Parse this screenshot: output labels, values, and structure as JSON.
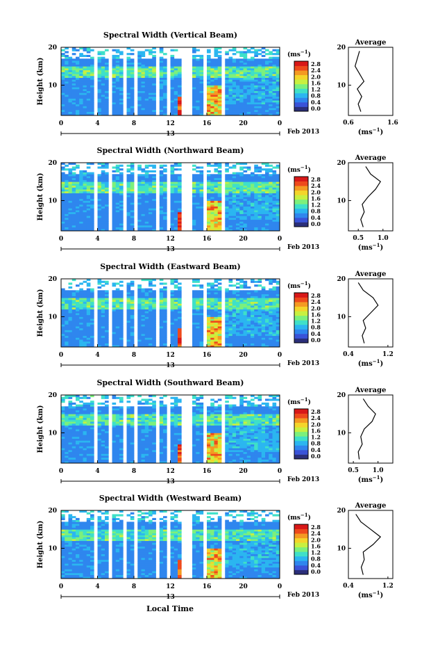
{
  "figure": {
    "x_axis_label": "Local Time",
    "colorbar_unit": "(ms",
    "colorbar_unit_sup": "−1",
    "avg_title": "Average",
    "avg_unit": "(ms",
    "avg_unit_sup": "−1",
    "y_axis_label": "Height (km)",
    "date_label": "Feb 2013",
    "day_label": "13"
  },
  "colorbar": {
    "ticks": [
      "2.8",
      "2.4",
      "2.0",
      "1.6",
      "1.2",
      "0.8",
      "0.4",
      "0.0"
    ],
    "colors": [
      "#2b2f7a",
      "#3a53d8",
      "#2f86ee",
      "#2bb6f0",
      "#3fe0c8",
      "#7cf07c",
      "#c8f040",
      "#f4d52a",
      "#f49a22",
      "#ee4a1c",
      "#d81818"
    ]
  },
  "chart_data": [
    {
      "type": "heatmap",
      "title": "Spectral Width (Vertical Beam)",
      "xlabel": "",
      "ylabel": "Height (km)",
      "xlim": [
        0,
        24
      ],
      "ylim": [
        2,
        20
      ],
      "x_ticks": [
        "0",
        "4",
        "8",
        "12",
        "16",
        "20",
        "0"
      ],
      "y_ticks": [
        "20",
        "10"
      ],
      "colorbar_range": [
        0.0,
        2.8
      ],
      "avg_profile": {
        "xlim": [
          0.6,
          1.6
        ],
        "x_ticks": [
          "0.6",
          "1.6"
        ],
        "profile": [
          [
            0.88,
            3
          ],
          [
            0.82,
            5
          ],
          [
            0.9,
            7
          ],
          [
            0.8,
            9
          ],
          [
            0.95,
            11
          ],
          [
            0.85,
            13
          ],
          [
            0.75,
            15
          ],
          [
            0.8,
            17
          ],
          [
            0.85,
            19
          ]
        ]
      }
    },
    {
      "type": "heatmap",
      "title": "Spectral Width (Northward Beam)",
      "xlabel": "",
      "ylabel": "Height (km)",
      "xlim": [
        0,
        24
      ],
      "ylim": [
        2,
        20
      ],
      "x_ticks": [
        "0",
        "4",
        "8",
        "12",
        "16",
        "20",
        "0"
      ],
      "y_ticks": [
        "20",
        "10"
      ],
      "colorbar_range": [
        0.0,
        2.8
      ],
      "avg_profile": {
        "xlim": [
          0.3,
          1.2
        ],
        "x_ticks": [
          "0.5",
          "1.0"
        ],
        "profile": [
          [
            0.6,
            3
          ],
          [
            0.55,
            5
          ],
          [
            0.62,
            7
          ],
          [
            0.58,
            9
          ],
          [
            0.7,
            11
          ],
          [
            0.85,
            13
          ],
          [
            0.95,
            15
          ],
          [
            0.75,
            17
          ],
          [
            0.65,
            19
          ]
        ]
      }
    },
    {
      "type": "heatmap",
      "title": "Spectral Width (Eastward Beam)",
      "xlabel": "",
      "ylabel": "Height (km)",
      "xlim": [
        0,
        24
      ],
      "ylim": [
        2,
        20
      ],
      "x_ticks": [
        "0",
        "4",
        "8",
        "12",
        "16",
        "20",
        "0"
      ],
      "y_ticks": [
        "20",
        "10"
      ],
      "colorbar_range": [
        0.0,
        2.8
      ],
      "avg_profile": {
        "xlim": [
          0.4,
          1.3
        ],
        "x_ticks": [
          "0.4",
          "1.2"
        ],
        "profile": [
          [
            0.72,
            3
          ],
          [
            0.68,
            5
          ],
          [
            0.75,
            7
          ],
          [
            0.7,
            9
          ],
          [
            0.85,
            11
          ],
          [
            1.0,
            13
          ],
          [
            0.9,
            15
          ],
          [
            0.7,
            17
          ],
          [
            0.6,
            19
          ]
        ]
      }
    },
    {
      "type": "heatmap",
      "title": "Spectral Width (Southward Beam)",
      "xlabel": "",
      "ylabel": "Height (km)",
      "xlim": [
        0,
        24
      ],
      "ylim": [
        2,
        20
      ],
      "x_ticks": [
        "0",
        "4",
        "8",
        "12",
        "16",
        "20",
        "0"
      ],
      "y_ticks": [
        "20",
        "10"
      ],
      "colorbar_range": [
        0.0,
        2.8
      ],
      "avg_profile": {
        "xlim": [
          0.4,
          1.3
        ],
        "x_ticks": [
          "0.5",
          "1.0"
        ],
        "profile": [
          [
            0.62,
            3
          ],
          [
            0.6,
            5
          ],
          [
            0.68,
            7
          ],
          [
            0.65,
            9
          ],
          [
            0.72,
            11
          ],
          [
            0.88,
            13
          ],
          [
            0.95,
            15
          ],
          [
            0.8,
            17
          ],
          [
            0.7,
            19
          ]
        ]
      }
    },
    {
      "type": "heatmap",
      "title": "Spectral Width (Westward Beam)",
      "xlabel": "",
      "ylabel": "Height (km)",
      "xlim": [
        0,
        24
      ],
      "ylim": [
        2,
        20
      ],
      "x_ticks": [
        "0",
        "4",
        "8",
        "12",
        "16",
        "20",
        "0"
      ],
      "y_ticks": [
        "20",
        "10"
      ],
      "colorbar_range": [
        0.0,
        2.8
      ],
      "avg_profile": {
        "xlim": [
          0.4,
          1.3
        ],
        "x_ticks": [
          "0.4",
          "1.2"
        ],
        "profile": [
          [
            0.7,
            3
          ],
          [
            0.66,
            5
          ],
          [
            0.72,
            7
          ],
          [
            0.7,
            9
          ],
          [
            0.9,
            11
          ],
          [
            1.05,
            13
          ],
          [
            0.85,
            15
          ],
          [
            0.65,
            17
          ],
          [
            0.55,
            19
          ]
        ]
      }
    }
  ]
}
